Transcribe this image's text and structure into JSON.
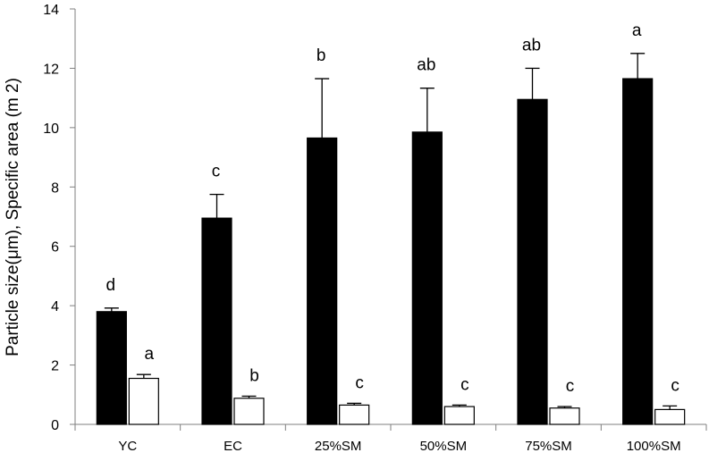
{
  "chart_data": {
    "type": "bar",
    "title": "",
    "xlabel": "",
    "ylabel": "Particle size(μm), Specific area (m 2)",
    "ylim": [
      0,
      14
    ],
    "yticks": [
      0,
      2,
      4,
      6,
      8,
      10,
      12,
      14
    ],
    "grid": false,
    "categories": [
      "YC",
      "EC",
      "25%SM",
      "50%SM",
      "75%SM",
      "100%SM"
    ],
    "series": [
      {
        "color": "#000000",
        "values": [
          3.8,
          6.95,
          9.65,
          9.85,
          10.95,
          11.65
        ],
        "errors": [
          0.12,
          0.8,
          2.0,
          1.48,
          1.05,
          0.85
        ],
        "significance": [
          "d",
          "c",
          "b",
          "ab",
          "ab",
          "a"
        ]
      },
      {
        "color": "#ffffff",
        "values": [
          1.55,
          0.88,
          0.65,
          0.6,
          0.55,
          0.5
        ],
        "errors": [
          0.13,
          0.07,
          0.06,
          0.05,
          0.05,
          0.12
        ],
        "significance": [
          "a",
          "b",
          "c",
          "c",
          "c",
          "c"
        ]
      }
    ]
  }
}
